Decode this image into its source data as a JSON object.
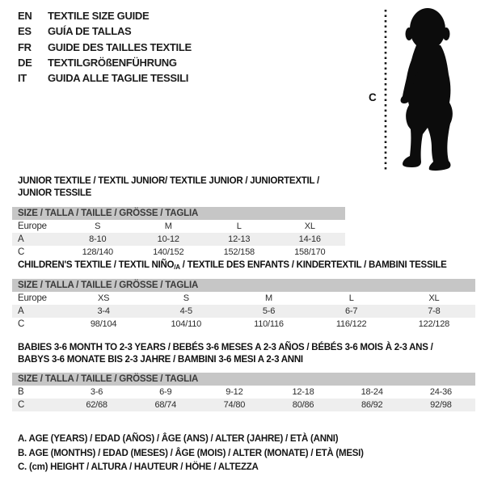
{
  "colors": {
    "header_bar_bg": "#c6c6c6",
    "alt_row_bg": "#eeeeee",
    "text": "#1c1c1c",
    "silhouette": "#0c0c0c"
  },
  "languages": [
    {
      "code": "EN",
      "title": "TEXTILE SIZE GUIDE"
    },
    {
      "code": "ES",
      "title": "GUÍA DE TALLAS"
    },
    {
      "code": "FR",
      "title": "GUIDE DES TAILLES TEXTILE"
    },
    {
      "code": "DE",
      "title": "TEXTILGRÖßENFÜHRUNG"
    },
    {
      "code": "IT",
      "title": "GUIDA ALLE TAGLIE TESSILI"
    }
  ],
  "figure": {
    "label": "C"
  },
  "tables": [
    {
      "id": "junior",
      "title_lines": [
        [
          {
            "text": "JUNIOR TEXTILE / TEXTIL JUNIOR/ TEXTILE JUNIOR / JUNIORTEXTIL / JUNIOR TESSILE"
          }
        ]
      ],
      "size_header": "SIZE / TALLA / TAILLE / GRÖSSE / TAGLIA",
      "rows": [
        {
          "label": "Europe",
          "values": [
            "S",
            "M",
            "L",
            "XL"
          ]
        },
        {
          "label": "A",
          "values": [
            "8-10",
            "10-12",
            "12-13",
            "14-16"
          ]
        },
        {
          "label": "C",
          "values": [
            "128/140",
            "140/152",
            "152/158",
            "158/170"
          ]
        }
      ]
    },
    {
      "id": "children",
      "title_lines": [
        [
          {
            "text": "CHILDREN'S TEXTILE / TEXTIL NIÑO"
          },
          {
            "text": "/A",
            "sub": true
          },
          {
            "text": " / TEXTILE DES ENFANTS / KINDERTEXTIL / BAMBINI TESSILE"
          }
        ]
      ],
      "size_header": "SIZE / TALLA / TAILLE / GRÖSSE / TAGLIA",
      "rows": [
        {
          "label": "Europe",
          "values": [
            "XS",
            "S",
            "M",
            "L",
            "XL"
          ]
        },
        {
          "label": "A",
          "values": [
            "3-4",
            "4-5",
            "5-6",
            "6-7",
            "7-8"
          ]
        },
        {
          "label": "C",
          "values": [
            "98/104",
            "104/110",
            "110/116",
            "116/122",
            "122/128"
          ]
        }
      ]
    },
    {
      "id": "babies",
      "title_lines": [
        [
          {
            "text": "BABIES 3-6 MONTH TO 2-3 YEARS / BEBÉS 3-6 MESES A 2-3 AÑOS / BÉBÉS 3-6 MOIS À 2-3 ANS /"
          }
        ],
        [
          {
            "text": "BABYS 3-6 MONATE BIS 2-3 JAHRE / BAMBINI 3-6 MESI A 2-3 ANNI"
          }
        ]
      ],
      "size_header": "SIZE / TALLA / TAILLE / GRÖSSE / TAGLIA",
      "rows": [
        {
          "label": "B",
          "values": [
            "3-6",
            "6-9",
            "9-12",
            "12-18",
            "18-24",
            "24-36"
          ]
        },
        {
          "label": "C",
          "values": [
            "62/68",
            "68/74",
            "74/80",
            "80/86",
            "86/92",
            "92/98"
          ]
        }
      ]
    }
  ],
  "legend": [
    "A. AGE (YEARS) / EDAD (AÑOS) / ÂGE (ANS) / ALTER (JAHRE) / ETÀ (ANNI)",
    "B. AGE (MONTHS) / EDAD (MESES) / ÂGE (MOIS) / ALTER (MONATE) / ETÀ (MESI)",
    "C. (cm) HEIGHT / ALTURA / HAUTEUR / HÖHE / ALTEZZA"
  ]
}
